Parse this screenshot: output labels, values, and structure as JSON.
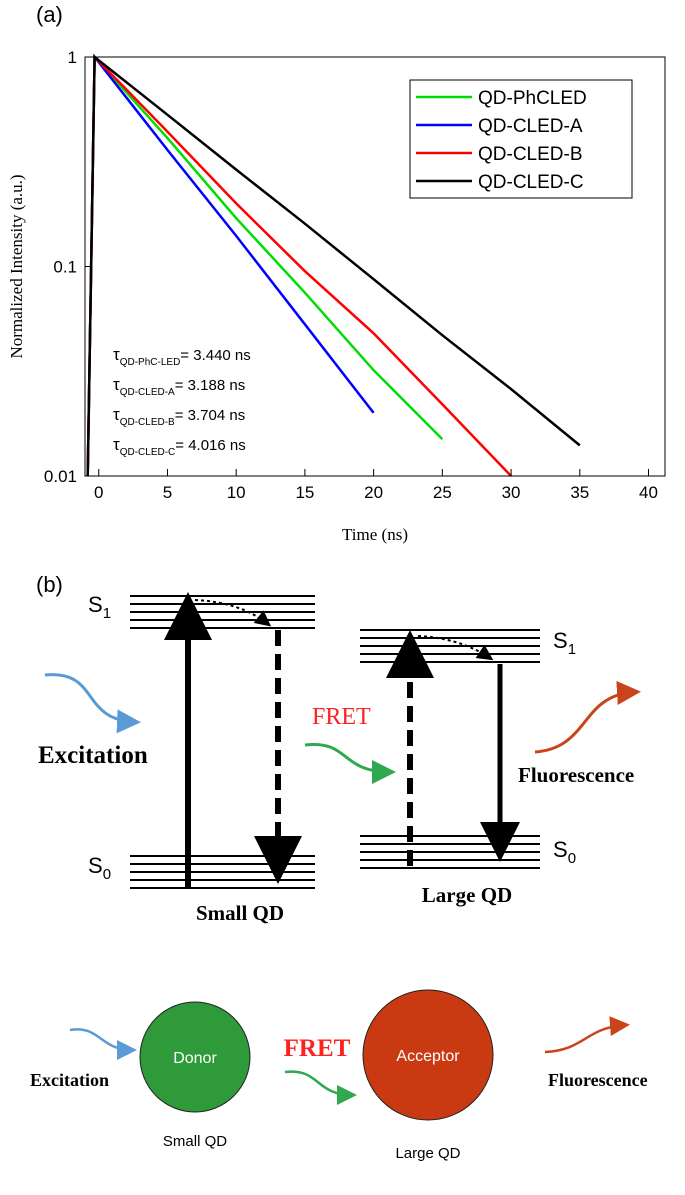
{
  "panel_labels": [
    "(a)",
    "(b)"
  ],
  "chart_data": {
    "type": "line",
    "xlabel": "Time (ns)",
    "ylabel": "Normalized Intensity (a.u.)",
    "x": [
      -0.8,
      -0.3,
      5,
      10,
      15,
      20,
      25,
      30,
      35
    ],
    "series": [
      {
        "name": "QD-PhCLED",
        "color": "#00dd00",
        "values": [
          0.01,
          1,
          0.41,
          0.17,
          0.075,
          0.032,
          0.015,
          null,
          null
        ]
      },
      {
        "name": "QD-CLED-A",
        "color": "#0000ff",
        "values": [
          0.01,
          1,
          0.36,
          0.14,
          0.053,
          0.02,
          null,
          null,
          null
        ]
      },
      {
        "name": "QD-CLED-B",
        "color": "#ff0000",
        "values": [
          0.01,
          1,
          0.44,
          0.2,
          0.095,
          0.048,
          0.022,
          0.01,
          null
        ]
      },
      {
        "name": "QD-CLED-C",
        "color": "#000000",
        "values": [
          0.01,
          1,
          0.53,
          0.29,
          0.16,
          0.087,
          0.047,
          0.026,
          0.014
        ]
      }
    ],
    "xlim": [
      -1,
      41.2
    ],
    "xticks": [
      0,
      5,
      10,
      15,
      20,
      25,
      30,
      35,
      40
    ],
    "ylim": [
      0.01,
      1
    ],
    "yticks": [
      0.01,
      0.1,
      1
    ],
    "log_y": true,
    "legend": "upper right",
    "annotations": [
      {
        "symbol": "τ",
        "sub": "QD-PhC-LED",
        "text": "= 3.440 ns"
      },
      {
        "symbol": "τ",
        "sub": "QD-CLED-A",
        "text": "= 3.188 ns"
      },
      {
        "symbol": "τ",
        "sub": "QD-CLED-B",
        "text": "= 3.704 ns"
      },
      {
        "symbol": "τ",
        "sub": "QD-CLED-C",
        "text": "= 4.016 ns"
      }
    ]
  },
  "energy_diagram": {
    "small_s1": {
      "base": "S",
      "sub": "1"
    },
    "small_s0": {
      "base": "S",
      "sub": "0"
    },
    "large_s1": {
      "base": "S",
      "sub": "1"
    },
    "large_s0": {
      "base": "S",
      "sub": "0"
    },
    "excitation": "Excitation",
    "fret": "FRET",
    "fluorescence": "Fluorescence",
    "small_qd": "Small QD",
    "large_qd": "Large QD"
  },
  "transfer_diagram": {
    "excitation": "Excitation",
    "donor": "Donor",
    "fret": "FRET",
    "acceptor": "Acceptor",
    "fluorescence": "Fluorescence",
    "small_qd": "Small QD",
    "large_qd": "Large QD"
  }
}
